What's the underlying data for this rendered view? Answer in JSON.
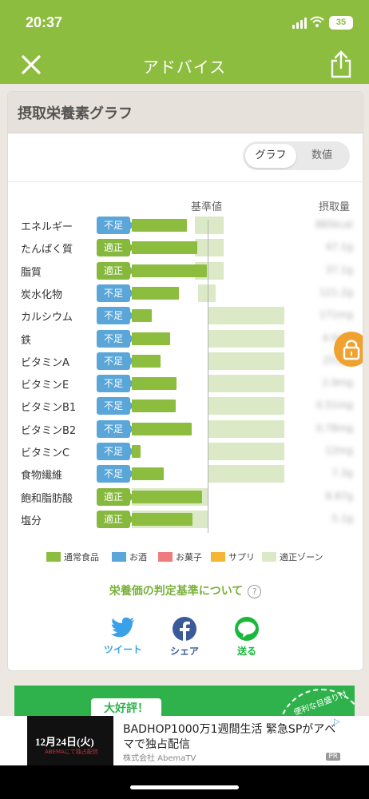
{
  "status": {
    "time": "20:37",
    "battery": "35"
  },
  "nav": {
    "title": "アドバイス"
  },
  "card": {
    "title": "摂取栄養素グラフ"
  },
  "toggle": {
    "graph": "グラフ",
    "values": "数値"
  },
  "headers": {
    "reference": "基準値",
    "intake": "摂取量"
  },
  "rows": [
    {
      "name": "エネルギー",
      "status": "不足",
      "bar": 0.73,
      "amount": "885kcal"
    },
    {
      "name": "たんぱく質",
      "status": "適正",
      "bar": 0.86,
      "amount": "47.1g"
    },
    {
      "name": "脂質",
      "status": "適正",
      "bar": 0.99,
      "amount": "37.1g"
    },
    {
      "name": "炭水化物",
      "status": "不足",
      "bar": 0.62,
      "amount": "121.2g"
    },
    {
      "name": "カルシウム",
      "status": "不足",
      "bar": 0.26,
      "amount": "171mg"
    },
    {
      "name": "鉄",
      "status": "不足",
      "bar": 0.51,
      "amount": "4.0mg"
    },
    {
      "name": "ビタミンA",
      "status": "不足",
      "bar": 0.38,
      "amount": "251μg"
    },
    {
      "name": "ビタミンE",
      "status": "不足",
      "bar": 0.59,
      "amount": "2.9mg"
    },
    {
      "name": "ビタミンB1",
      "status": "不足",
      "bar": 0.58,
      "amount": "0.51mg"
    },
    {
      "name": "ビタミンB2",
      "status": "不足",
      "bar": 0.79,
      "amount": "0.78mg"
    },
    {
      "name": "ビタミンC",
      "status": "不足",
      "bar": 0.12,
      "amount": "12mg"
    },
    {
      "name": "食物繊維",
      "status": "不足",
      "bar": 0.42,
      "amount": "7.3g"
    },
    {
      "name": "飽和脂肪酸",
      "status": "適正",
      "bar": 0.93,
      "amount": "8.87g"
    },
    {
      "name": "塩分",
      "status": "適正",
      "bar": 0.8,
      "amount": "5.1g"
    }
  ],
  "legend": {
    "regular": "通常食品",
    "alcohol": "お酒",
    "snack": "お菓子",
    "supplement": "サプリ",
    "zone": "適正ゾーン"
  },
  "colors": {
    "brand": "#8dbd3f",
    "short": "#5aa6d9",
    "ok": "#86b83d",
    "alcohol": "#5aa6d9",
    "snack": "#ef7c7c",
    "supplement": "#f5b535",
    "zone": "#dce9c7",
    "lock": "#f0a230"
  },
  "about_link": "栄養価の判定基準について",
  "about_help": "?",
  "share": {
    "tweet": "ツイート",
    "facebook": "シェア",
    "line": "送る"
  },
  "icons": {
    "close": "close-icon",
    "share": "share-icon",
    "lock": "lock-icon",
    "twitter": "twitter-icon",
    "facebook": "facebook-icon",
    "line": "line-icon"
  },
  "promo": {
    "tag": "大好評！",
    "circle_text": "便利な目盛り付き"
  },
  "ad": {
    "thumb_title": "12月24日(火)",
    "thumb_sub": "ABEMAにて独占配信",
    "headline": "BADHOP1000万1週間生活 緊急SPがアベマで独占配信",
    "advertiser": "株式会社 AbemaTV",
    "pr": "PR"
  }
}
